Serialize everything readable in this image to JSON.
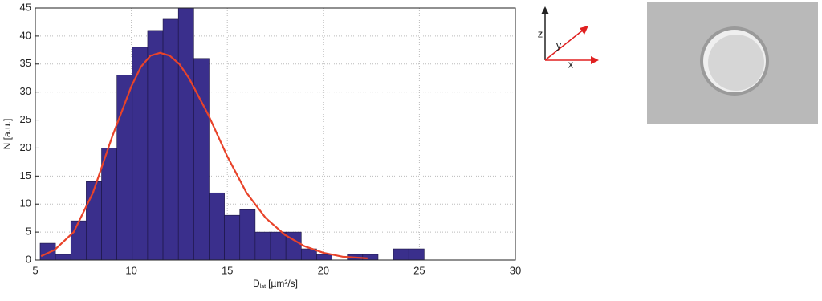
{
  "chart_data": {
    "type": "histogram",
    "bins": [
      5.25,
      6.05,
      6.85,
      7.65,
      8.45,
      9.25,
      10.05,
      10.85,
      11.65,
      12.45,
      13.25,
      14.05,
      14.85,
      15.65,
      16.45,
      17.25,
      18.05,
      18.85,
      19.65,
      20.45,
      21.25,
      22.05,
      22.85,
      23.65,
      24.45,
      25.25
    ],
    "counts": [
      3,
      1,
      7,
      14,
      20,
      33,
      38,
      41,
      43,
      45,
      36,
      12,
      8,
      9,
      5,
      5,
      5,
      2,
      1,
      0,
      1,
      1,
      0,
      2,
      2
    ],
    "color": "#3a2f8c",
    "fit": {
      "type": "line",
      "color": "#e8432a",
      "x": [
        5.3,
        6,
        7,
        8,
        9,
        10,
        10.5,
        11,
        11.5,
        12,
        12.5,
        13,
        14,
        15,
        16,
        17,
        18,
        19,
        20,
        21,
        22.3
      ],
      "y": [
        0.7,
        1.8,
        5,
        12,
        22,
        31,
        34.5,
        36.5,
        37,
        36.5,
        35,
        32.5,
        26,
        18.5,
        12,
        7.5,
        4.5,
        2.5,
        1.3,
        0.6,
        0.3
      ]
    },
    "xlabel": "D",
    "xlabel_sub": "lat",
    "xlabel_unit": "[µm²/s]",
    "ylabel": "N [a.u.]",
    "xlim": [
      5,
      30
    ],
    "ylim": [
      0,
      45
    ],
    "xticks": [
      5,
      10,
      15,
      20,
      25,
      30
    ],
    "yticks": [
      0,
      5,
      10,
      15,
      20,
      25,
      30,
      35,
      40,
      45
    ],
    "grid": true
  },
  "diagram": {
    "labels": [
      "z",
      "y",
      "x"
    ]
  }
}
